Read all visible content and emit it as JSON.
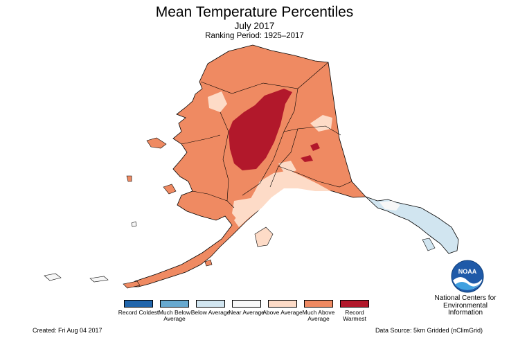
{
  "header": {
    "title": "Mean Temperature Percentiles",
    "subtitle": "July 2017",
    "ranking": "Ranking Period: 1925–2017"
  },
  "legend": {
    "items": [
      {
        "label": "Record Coldest",
        "color": "#2166ac"
      },
      {
        "label": "Much Below Average",
        "color": "#67a9cf"
      },
      {
        "label": "Below Average",
        "color": "#d1e5f0"
      },
      {
        "label": "Near Average",
        "color": "#f7f7f7"
      },
      {
        "label": "Above Average",
        "color": "#fddbc7"
      },
      {
        "label": "Much Above Average",
        "color": "#ef8a62"
      },
      {
        "label": "Record Warmest",
        "color": "#b2182b"
      }
    ]
  },
  "footer": {
    "created": "Created: Fri Aug 04 2017",
    "data_source": "Data Source: 5km Gridded (nClimGrid)"
  },
  "agency": {
    "logo_text": "NOAA",
    "name_line1": "National Centers for",
    "name_line2": "Environmental",
    "name_line3": "Information"
  }
}
